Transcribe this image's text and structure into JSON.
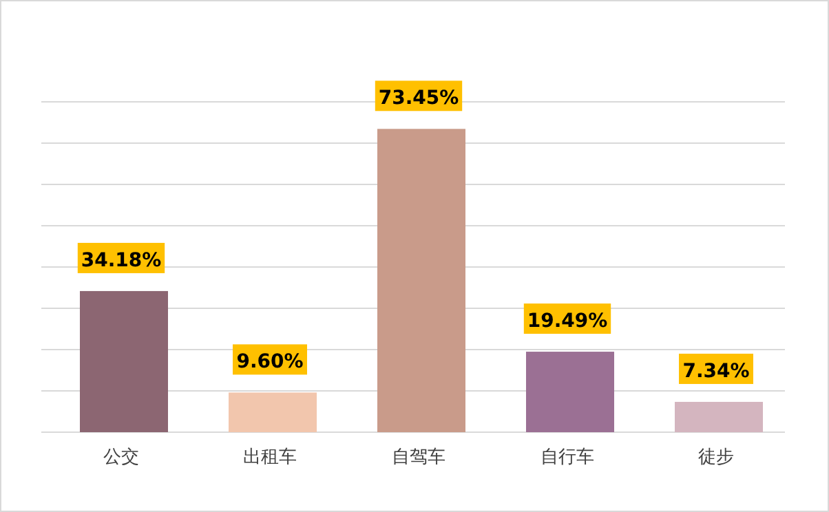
{
  "chart_data": {
    "type": "bar",
    "categories": [
      "公交",
      "出租车",
      "自驾车",
      "自行车",
      "徒步"
    ],
    "values": [
      34.18,
      9.6,
      73.45,
      19.49,
      7.34
    ],
    "colors": [
      "#8c6672",
      "#f2c6ad",
      "#c99b8a",
      "#9b7094",
      "#d4b5bf"
    ],
    "value_labels": [
      "34.18%",
      "9.60%",
      "73.45%",
      "19.49%",
      "7.34%"
    ],
    "ylim": [
      0,
      80
    ],
    "yticks": [
      {
        "value": 0,
        "label": null
      },
      {
        "value": 10,
        "label": null
      },
      {
        "value": 20,
        "label": null
      },
      {
        "value": 30,
        "label": null
      },
      {
        "value": 40,
        "label": null
      },
      {
        "value": 50,
        "label": null
      },
      {
        "value": 60,
        "label": null
      },
      {
        "value": 70,
        "label": null
      },
      {
        "value": 80,
        "label": null
      }
    ],
    "grid": "y",
    "tick_labels": "x"
  }
}
